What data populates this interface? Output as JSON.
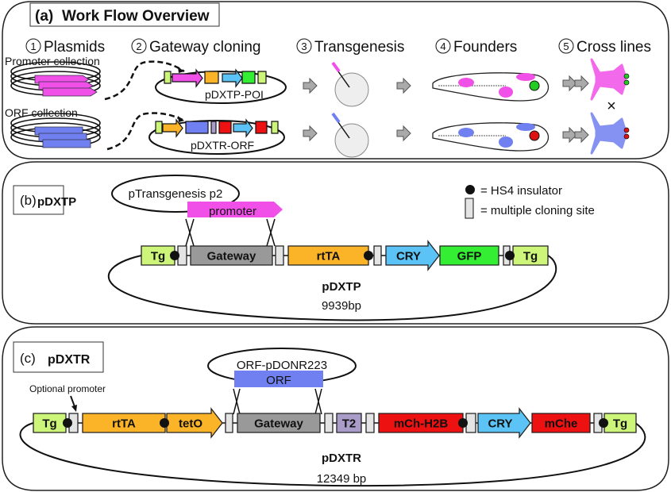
{
  "panel_a": {
    "title_letter": "(a)",
    "title": "Work Flow Overview",
    "steps": [
      {
        "num": "1",
        "label": "Plasmids"
      },
      {
        "num": "2",
        "label": "Gateway cloning"
      },
      {
        "num": "3",
        "label": "Transgenesis"
      },
      {
        "num": "4",
        "label": "Founders"
      },
      {
        "num": "5",
        "label": "Cross lines"
      }
    ],
    "promoter_collection": "Promoter collection",
    "orf_collection": "ORF collection",
    "construct_top": "pDXTP-POI",
    "construct_bottom": "pDXTR-ORF",
    "cross_symbol": "×",
    "colors": {
      "promoter": "#f050e8",
      "orf": "#7080f0",
      "green_eye": "#22cc22",
      "red_eye": "#dd1111"
    }
  },
  "panel_b": {
    "title_letter": "(b)",
    "title": "pDXTP",
    "donor": "pTransgenesis p2",
    "insert": "promoter",
    "legend": {
      "insulator": "= HS4 insulator",
      "mcs": "= multiple cloning site"
    },
    "segments": [
      {
        "label": "Tg",
        "color": "#ccf57a"
      },
      {
        "label": "",
        "color": "#e4e4e4"
      },
      {
        "label": "Gateway",
        "color": "#999999"
      },
      {
        "label": "",
        "color": "#e4e4e4"
      },
      {
        "label": "rtTA",
        "color": "#fbb328"
      },
      {
        "label": "",
        "color": "#e4e4e4"
      },
      {
        "label": "CRY",
        "color": "#5bc3f5"
      },
      {
        "label": "GFP",
        "color": "#33ee33"
      },
      {
        "label": "",
        "color": "#e4e4e4"
      },
      {
        "label": "Tg",
        "color": "#ccf57a"
      }
    ],
    "name": "pDXTP",
    "size": "9939bp"
  },
  "panel_c": {
    "title_letter": "(c)",
    "title": "pDXTR",
    "donor": "ORF-pDONR223",
    "insert": "ORF",
    "optional_promoter": "Optional promoter",
    "segments": [
      {
        "label": "Tg",
        "color": "#ccf57a"
      },
      {
        "label": "",
        "color": "#e4e4e4"
      },
      {
        "label": "rtTA",
        "color": "#fbb328"
      },
      {
        "label": "tetO",
        "color": "#fbb328"
      },
      {
        "label": "",
        "color": "#e4e4e4"
      },
      {
        "label": "Gateway",
        "color": "#999999"
      },
      {
        "label": "",
        "color": "#e4e4e4"
      },
      {
        "label": "T2",
        "color": "#a99cc8"
      },
      {
        "label": "",
        "color": "#e4e4e4"
      },
      {
        "label": "mCh-H2B",
        "color": "#ee1111"
      },
      {
        "label": "",
        "color": "#e4e4e4"
      },
      {
        "label": "CRY",
        "color": "#5bc3f5"
      },
      {
        "label": "mChe",
        "color": "#ee1111"
      },
      {
        "label": "",
        "color": "#e4e4e4"
      },
      {
        "label": "Tg",
        "color": "#ccf57a"
      }
    ],
    "name": "pDXTR",
    "size": "12349 bp"
  }
}
